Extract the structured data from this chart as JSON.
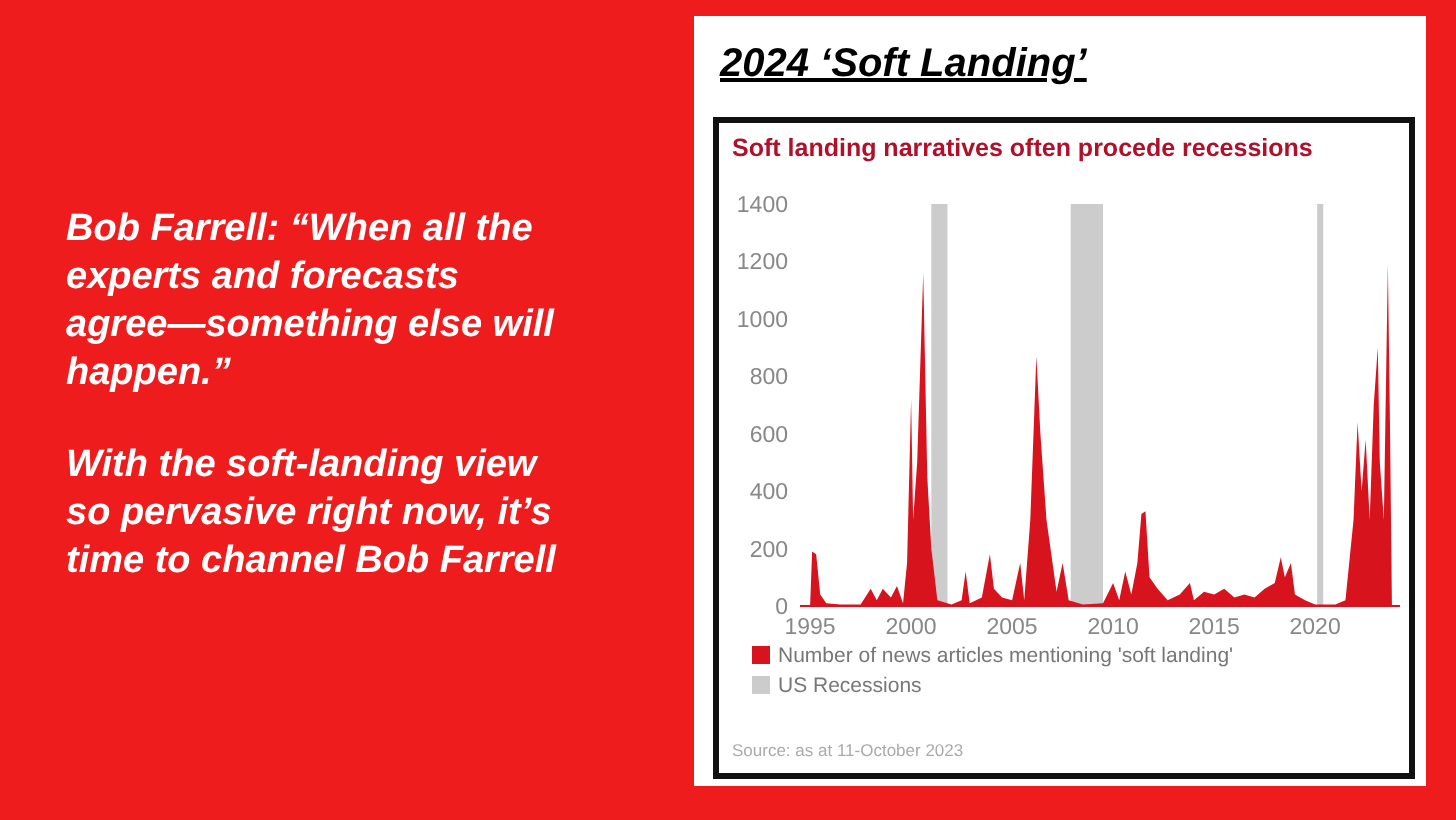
{
  "chart_data": {
    "type": "area",
    "title": "2024 ‘Soft Landing’",
    "subtitle": "Soft landing narratives often procede recessions",
    "annotations": [
      "Bob Farrell:  “When all the experts and forecasts agree—something else will happen.”",
      "With the soft-landing view so pervasive right now, it’s time to channel Bob Farrell",
      "Source: as at 11-October 2023"
    ],
    "x": [
      1995.0,
      1995.1,
      1995.3,
      1995.5,
      1995.8,
      1996.5,
      1997.5,
      1998.0,
      1998.3,
      1998.6,
      1999.0,
      1999.3,
      1999.6,
      1999.8,
      2000.0,
      2000.1,
      2000.3,
      2000.6,
      2000.8,
      2001.0,
      2001.3,
      2002.0,
      2002.5,
      2002.7,
      2002.9,
      2003.5,
      2003.9,
      2004.1,
      2004.5,
      2005.0,
      2005.4,
      2005.6,
      2005.9,
      2006.2,
      2006.4,
      2006.7,
      2006.9,
      2007.2,
      2007.5,
      2007.8,
      2008.5,
      2009.5,
      2010.0,
      2010.3,
      2010.6,
      2010.9,
      2011.2,
      2011.4,
      2011.6,
      2011.8,
      2012.2,
      2012.7,
      2013.3,
      2013.8,
      2014.0,
      2014.5,
      2015.0,
      2015.5,
      2016.0,
      2016.5,
      2017.0,
      2017.5,
      2018.0,
      2018.3,
      2018.5,
      2018.8,
      2019.0,
      2019.5,
      2020.0,
      2021.0,
      2021.5,
      2021.9,
      2022.1,
      2022.3,
      2022.5,
      2022.7,
      2022.9,
      2023.1,
      2023.2,
      2023.4,
      2023.6,
      2023.7,
      2023.8
    ],
    "series": [
      {
        "name": "Number of news articles mentioning 'soft landing'",
        "color": "#d7141e",
        "values": [
          0,
          190,
          180,
          40,
          10,
          5,
          5,
          60,
          20,
          60,
          30,
          70,
          10,
          150,
          720,
          300,
          500,
          1160,
          450,
          200,
          20,
          5,
          20,
          120,
          10,
          30,
          180,
          60,
          30,
          20,
          150,
          20,
          300,
          870,
          600,
          300,
          200,
          50,
          150,
          20,
          5,
          10,
          80,
          20,
          120,
          40,
          150,
          320,
          330,
          100,
          60,
          20,
          40,
          80,
          20,
          50,
          40,
          60,
          30,
          40,
          30,
          60,
          80,
          170,
          100,
          150,
          40,
          20,
          5,
          5,
          20,
          300,
          640,
          400,
          580,
          300,
          700,
          900,
          500,
          300,
          1190,
          650,
          0
        ]
      }
    ],
    "bands": [
      {
        "axis": "x",
        "from": 2001.0,
        "to": 2001.8,
        "label": "US Recessions",
        "color": "#cccccc"
      },
      {
        "axis": "x",
        "from": 2007.9,
        "to": 2009.5,
        "color": "#cccccc"
      },
      {
        "axis": "x",
        "from": 2020.1,
        "to": 2020.4,
        "color": "#cccccc"
      }
    ],
    "xlim": [
      1994.5,
      2024.2
    ],
    "xticks": [
      1995,
      2000,
      2005,
      2010,
      2015,
      2020
    ],
    "ylim": [
      0,
      1400
    ],
    "yticks": [
      0,
      200,
      400,
      600,
      800,
      1000,
      1200,
      1400
    ],
    "legend": "bottom",
    "grid": false
  }
}
